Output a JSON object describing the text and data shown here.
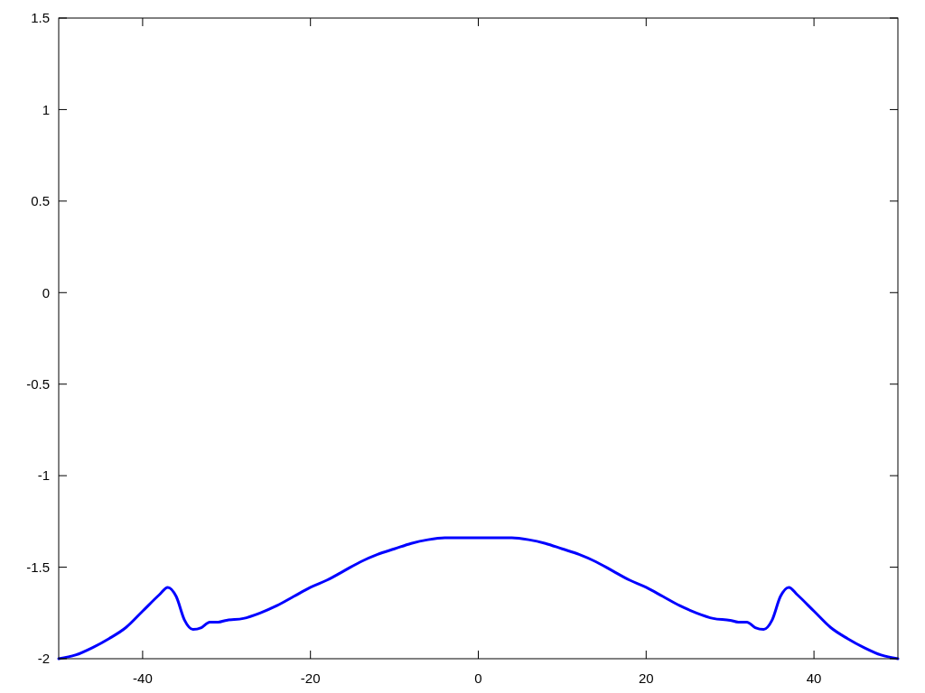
{
  "chart_data": {
    "type": "line",
    "x": [
      -50,
      -48,
      -46,
      -44,
      -42,
      -40,
      -38,
      -37,
      -36,
      -35,
      -34,
      -33,
      -32,
      -31,
      -30,
      -28,
      -26,
      -24,
      -22,
      -20,
      -18,
      -16,
      -14,
      -12,
      -10,
      -8,
      -6,
      -4,
      -2,
      0,
      2,
      4,
      6,
      8,
      10,
      12,
      14,
      16,
      18,
      20,
      22,
      24,
      26,
      28,
      30,
      31,
      32,
      33,
      34,
      35,
      36,
      37,
      38,
      40,
      42,
      44,
      46,
      48,
      50
    ],
    "series": [
      {
        "color": "#0000ff",
        "values": [
          -2,
          -1.98,
          -1.94,
          -1.89,
          -1.83,
          -1.74,
          -1.65,
          -1.61,
          -1.66,
          -1.79,
          -1.84,
          -1.83,
          -1.8,
          -1.8,
          -1.79,
          -1.78,
          -1.75,
          -1.71,
          -1.66,
          -1.61,
          -1.57,
          -1.52,
          -1.47,
          -1.43,
          -1.4,
          -1.37,
          -1.35,
          -1.34,
          -1.34,
          -1.34,
          -1.34,
          -1.34,
          -1.35,
          -1.37,
          -1.4,
          -1.43,
          -1.47,
          -1.52,
          -1.57,
          -1.61,
          -1.66,
          -1.71,
          -1.75,
          -1.78,
          -1.79,
          -1.8,
          -1.8,
          -1.83,
          -1.84,
          -1.79,
          -1.66,
          -1.61,
          -1.65,
          -1.74,
          -1.83,
          -1.89,
          -1.94,
          -1.98,
          -2
        ]
      }
    ],
    "xlim": [
      -50,
      50
    ],
    "xticks": [
      -40,
      -20,
      0,
      20,
      40
    ],
    "ylim": [
      -2,
      1.5
    ],
    "yticks": [
      -2,
      -1.5,
      -1,
      -0.5,
      0,
      0.5,
      1,
      1.5
    ],
    "grid": false,
    "line_style": "solid",
    "marker": "none"
  }
}
